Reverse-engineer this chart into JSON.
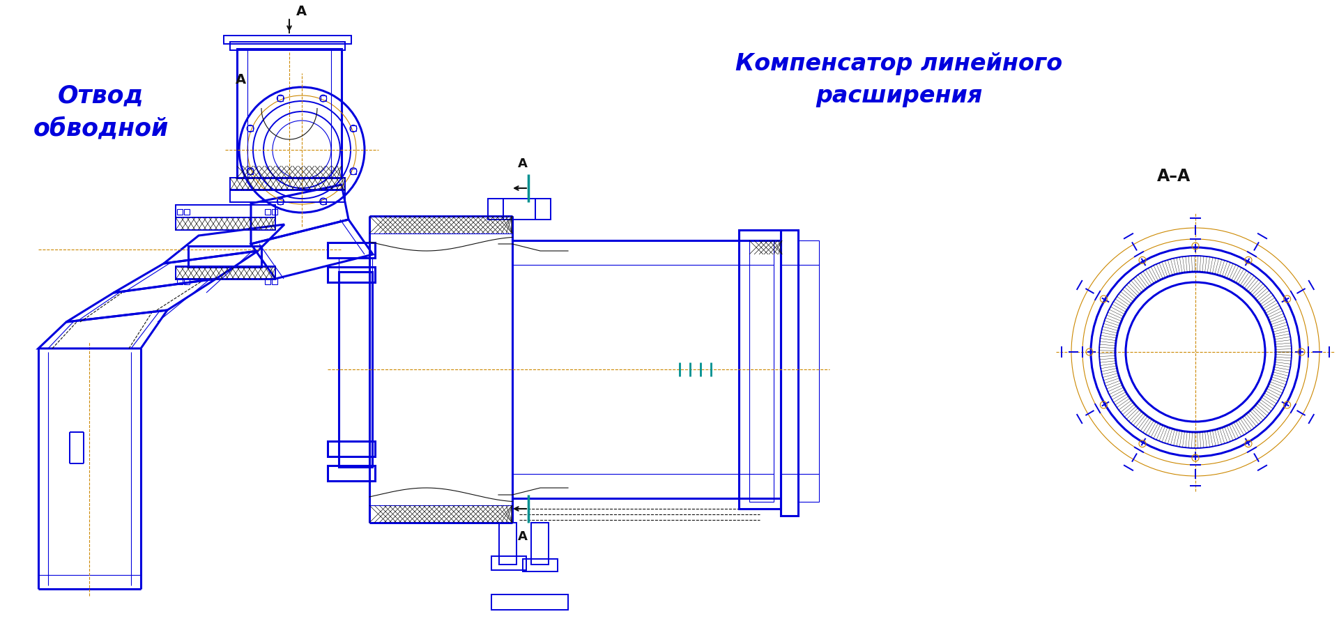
{
  "bg_color": "#ffffff",
  "blue": "#0000dd",
  "orange": "#cc8800",
  "dark": "#111111",
  "teal": "#009090",
  "title1": "Отвод\nобводной",
  "title2": "Компенсатор линейного\nрасширения",
  "label_AA": "A–A",
  "figsize": [
    19.21,
    9.14
  ],
  "dpi": 100
}
